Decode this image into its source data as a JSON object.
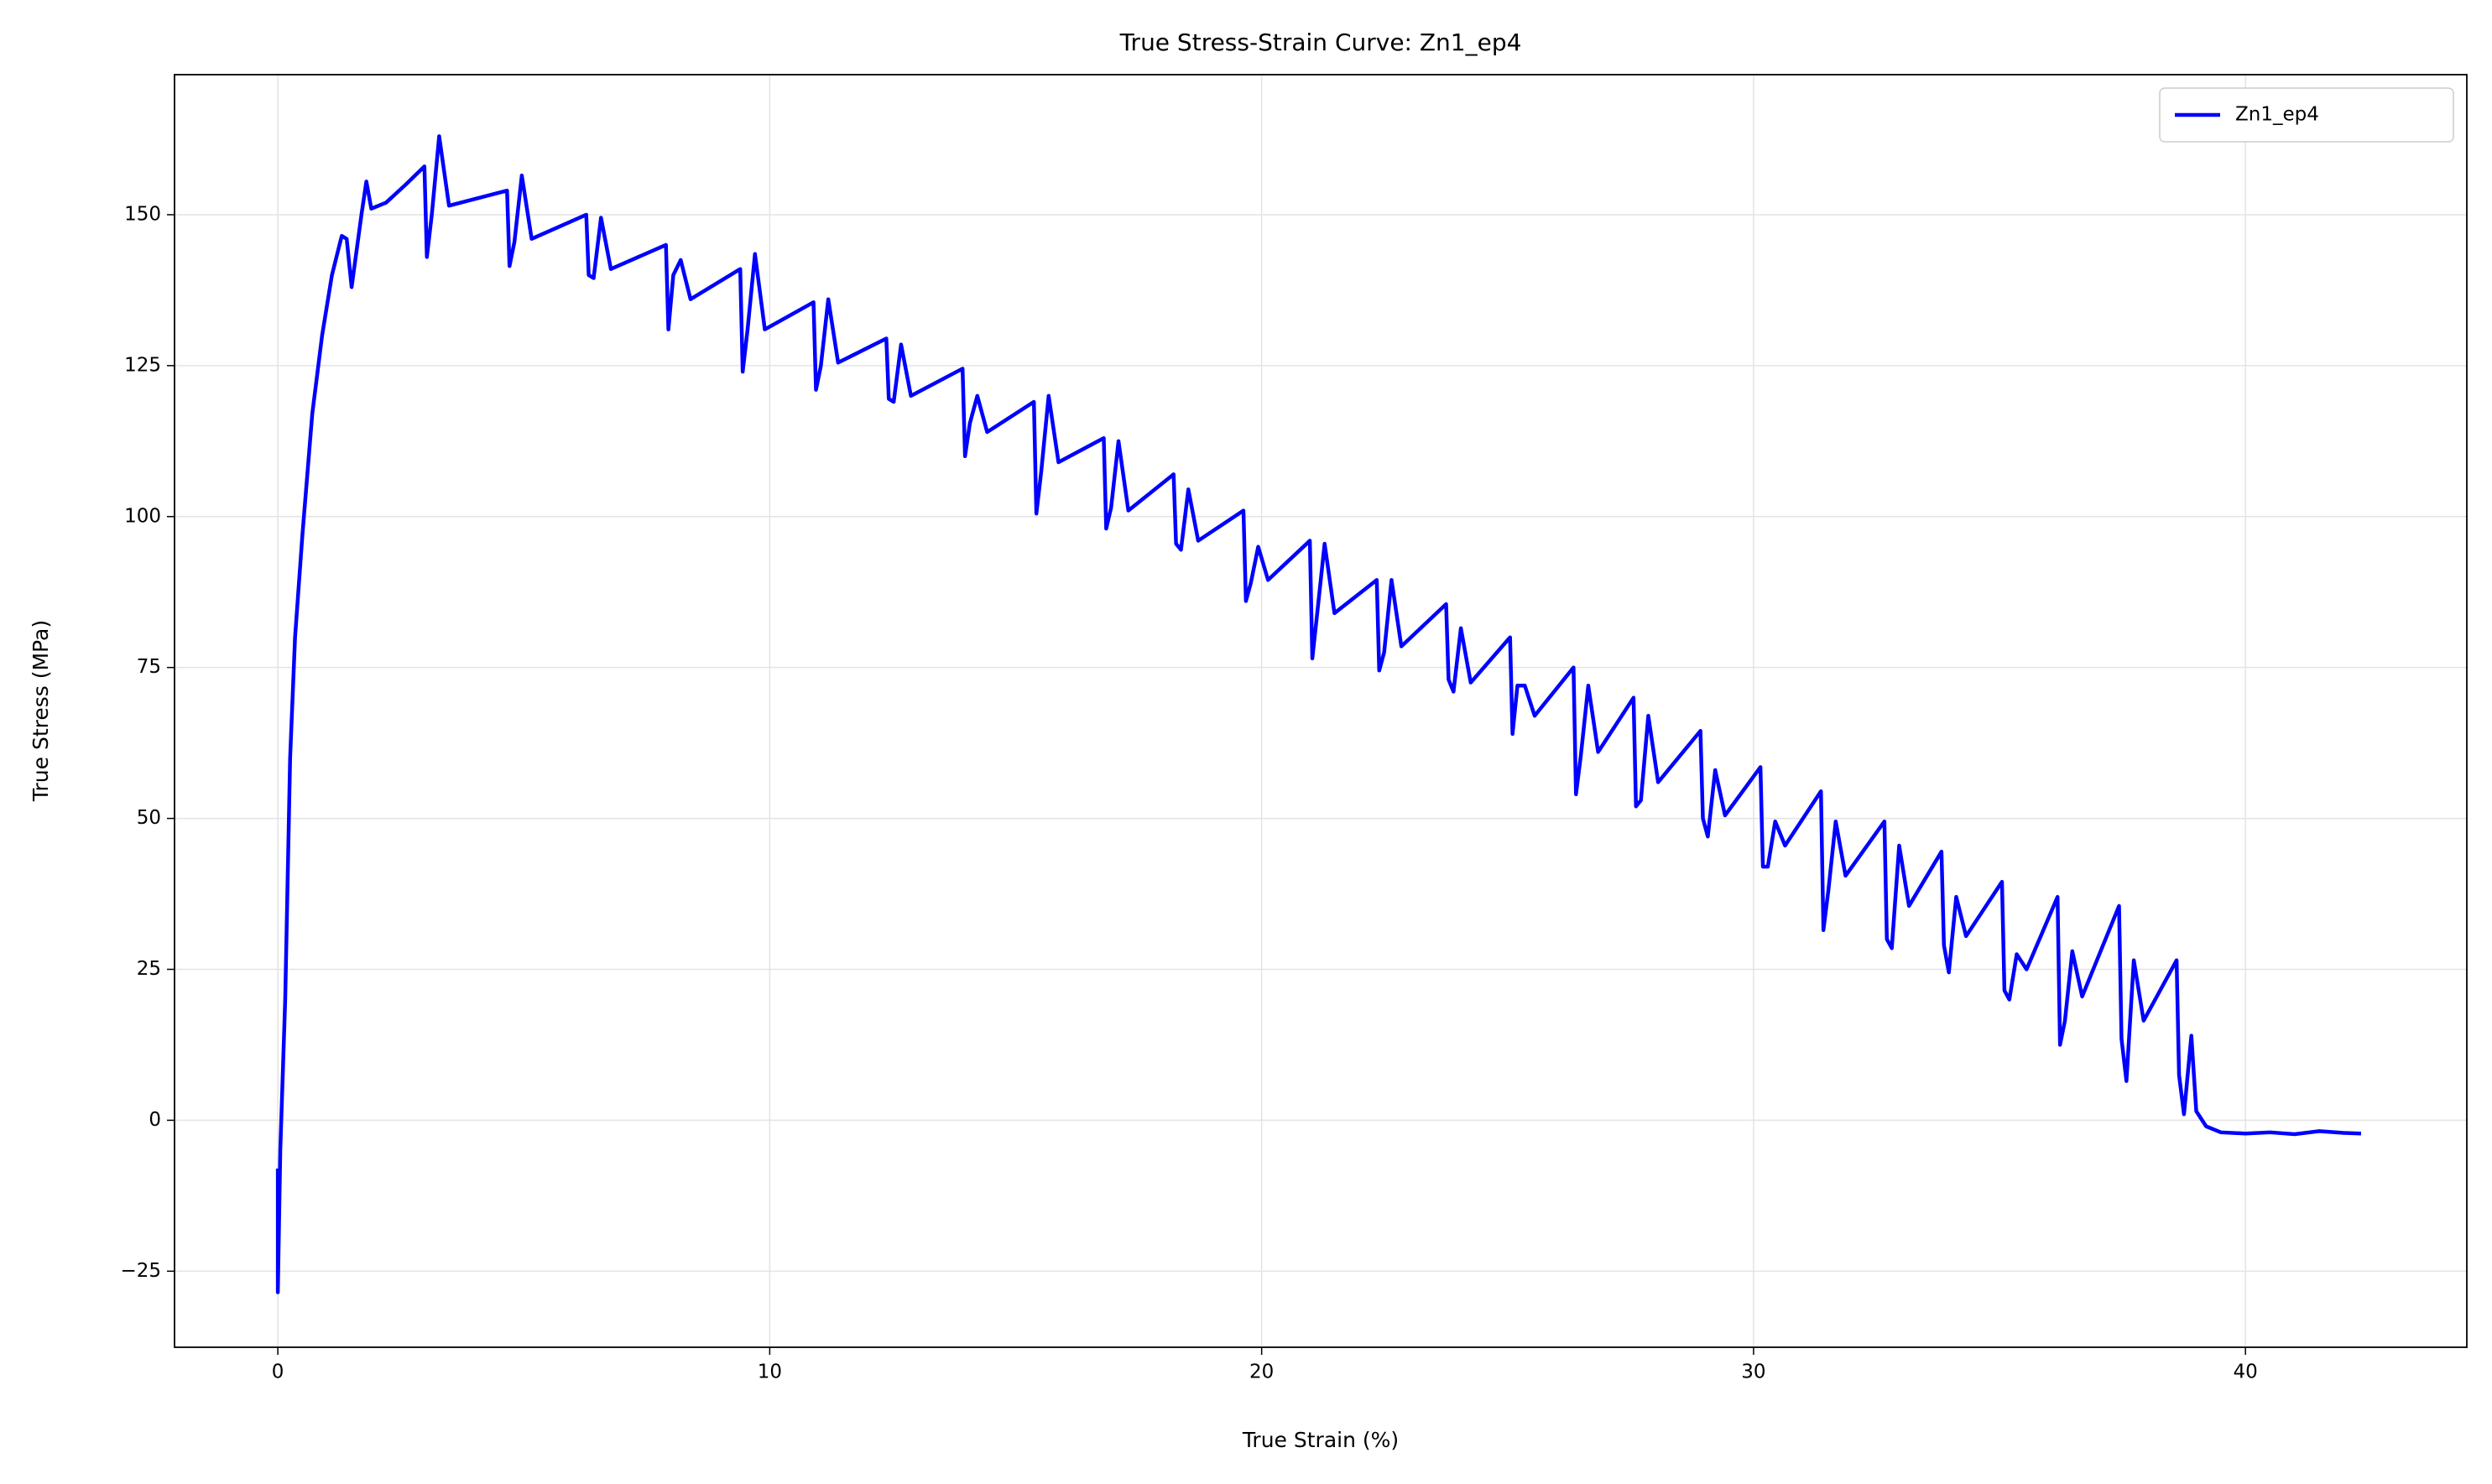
{
  "chart_data": {
    "type": "line",
    "title": "True Stress-Strain Curve: Zn1_ep4",
    "x_label": "True Strain (%)",
    "y_label": "True Stress (MPa)",
    "x": [
      0,
      0,
      0.05,
      0.15,
      0.25,
      0.35,
      0.5,
      0.7,
      0.9,
      1.1,
      1.3,
      1.4,
      1.5,
      1.7,
      1.8,
      1.9,
      2.2,
      2.6,
      2.98,
      3.03,
      3.13,
      3.28,
      3.48,
      4.66,
      4.71,
      4.81,
      4.96,
      5.16,
      6.27,
      6.32,
      6.42,
      6.57,
      6.77,
      7.89,
      7.94,
      8.04,
      8.19,
      8.39,
      9.4,
      9.45,
      9.55,
      9.7,
      9.9,
      10.89,
      10.94,
      11.04,
      11.19,
      11.39,
      12.37,
      12.42,
      12.52,
      12.67,
      12.87,
      13.92,
      13.97,
      14.07,
      14.22,
      14.42,
      15.37,
      15.42,
      15.52,
      15.67,
      15.87,
      16.79,
      16.84,
      16.94,
      17.09,
      17.29,
      18.21,
      18.26,
      18.36,
      18.51,
      18.71,
      19.63,
      19.68,
      19.78,
      19.93,
      20.13,
      20.98,
      21.03,
      21.13,
      21.28,
      21.48,
      22.34,
      22.39,
      22.49,
      22.64,
      22.84,
      23.75,
      23.8,
      23.9,
      24.05,
      24.25,
      25.05,
      25.1,
      25.2,
      25.35,
      25.55,
      26.34,
      26.39,
      26.49,
      26.64,
      26.84,
      27.56,
      27.61,
      27.71,
      27.86,
      28.06,
      28.92,
      28.97,
      29.07,
      29.22,
      29.42,
      30.14,
      30.19,
      30.29,
      30.44,
      30.64,
      31.37,
      31.42,
      31.52,
      31.67,
      31.87,
      32.66,
      32.71,
      32.81,
      32.96,
      33.16,
      33.82,
      33.87,
      33.97,
      34.12,
      34.32,
      35.05,
      35.1,
      35.2,
      35.35,
      35.55,
      36.18,
      36.23,
      36.33,
      36.48,
      36.68,
      37.43,
      37.48,
      37.58,
      37.73,
      37.93,
      38.6,
      38.65,
      38.75,
      38.9,
      39.0,
      39.2,
      39.5,
      40,
      40.5,
      41,
      41.5,
      42,
      42.35
    ],
    "series": [
      {
        "name": "Zn1_ep4",
        "color": "#0000ff",
        "values": [
          -8,
          -28.5,
          -5,
          20,
          60,
          80,
          97,
          117,
          130,
          140,
          146.5,
          146,
          138,
          150,
          155.5,
          151,
          152,
          155,
          158,
          143,
          150,
          163,
          151.5,
          154,
          141.5,
          145.5,
          156.5,
          146,
          150,
          140,
          139.5,
          149.5,
          141,
          145,
          131,
          140,
          142.5,
          136,
          141,
          124,
          131,
          143.5,
          131,
          135.5,
          121,
          125,
          136,
          125.5,
          129.5,
          119.5,
          119,
          128.5,
          120,
          124.5,
          110,
          115.5,
          120,
          114,
          119,
          100.5,
          107.5,
          120,
          109,
          113,
          98,
          101.5,
          112.5,
          101,
          107,
          95.5,
          94.5,
          104.5,
          96,
          101,
          86,
          89,
          95,
          89.5,
          96,
          76.5,
          84,
          95.5,
          84,
          89.5,
          74.5,
          77.5,
          89.5,
          78.5,
          85.5,
          73,
          71,
          81.5,
          72.5,
          80,
          64,
          72,
          72,
          67,
          75,
          54,
          60.5,
          72,
          61,
          70,
          52,
          53,
          67,
          56,
          64.5,
          50,
          47,
          58,
          50.5,
          58.5,
          42,
          42,
          49.5,
          45.5,
          54.5,
          31.5,
          38,
          49.5,
          40.5,
          49.5,
          30,
          28.5,
          45.5,
          35.5,
          44.5,
          29,
          24.5,
          37,
          30.5,
          39.5,
          21.5,
          20,
          27.5,
          25,
          37,
          12.5,
          16.5,
          28,
          20.5,
          35.5,
          13.5,
          6.5,
          26.5,
          16.5,
          26.5,
          7.5,
          1,
          14,
          1.5,
          -1,
          -2,
          -2.2,
          -2,
          -2.3,
          -1.8,
          -2.1,
          -2.2
        ]
      }
    ],
    "xlim": [
      -2.1,
      44.5
    ],
    "xticks": [
      0,
      10,
      20,
      30,
      40
    ],
    "ylim": [
      -37.6,
      173.2
    ],
    "yticks": [
      {
        "value": -25,
        "label": "−25"
      },
      0,
      25,
      50,
      75,
      100,
      125,
      150
    ],
    "grid": true,
    "legend": "upper right"
  }
}
